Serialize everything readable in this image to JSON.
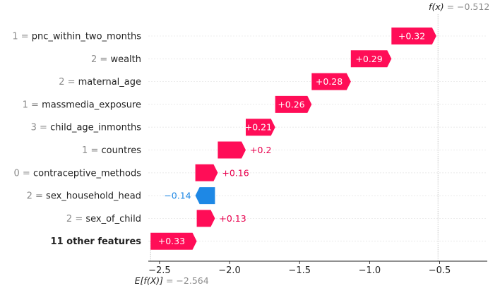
{
  "chart_data": {
    "type": "waterfall",
    "base_value": -2.564,
    "output_value": -0.512,
    "base_label": "E[f(X)] = −2.564",
    "output_label": "f(x) = −0.512",
    "xlim": [
      -2.58,
      -0.16
    ],
    "xticks": [
      -2.5,
      -2.0,
      -1.5,
      -1.0,
      -0.5
    ],
    "xtick_labels": [
      "−2.5",
      "−2.0",
      "−1.5",
      "−1.0",
      "−0.5"
    ],
    "features": [
      {
        "value": "1",
        "name": "pnc_within_two_months",
        "shap": 0.32,
        "label": "+0.32"
      },
      {
        "value": "2",
        "name": "wealth",
        "shap": 0.29,
        "label": "+0.29"
      },
      {
        "value": "2",
        "name": "maternal_age",
        "shap": 0.28,
        "label": "+0.28"
      },
      {
        "value": "1",
        "name": "massmedia_exposure",
        "shap": 0.26,
        "label": "+0.26"
      },
      {
        "value": "3",
        "name": "child_age_inmonths",
        "shap": 0.21,
        "label": "+0.21"
      },
      {
        "value": "1",
        "name": "countres",
        "shap": 0.2,
        "label": "+0.2"
      },
      {
        "value": "0",
        "name": "contraceptive_methods",
        "shap": 0.16,
        "label": "+0.16"
      },
      {
        "value": "2",
        "name": "sex_household_head",
        "shap": -0.14,
        "label": "−0.14"
      },
      {
        "value": "2",
        "name": "sex_of_child",
        "shap": 0.13,
        "label": "+0.13"
      },
      {
        "value": "",
        "name": "11 other features",
        "shap": 0.33,
        "label": "+0.33"
      }
    ],
    "colors": {
      "positive": "#ff0d57",
      "negative": "#1e88e5",
      "positive_text": "#e8004d",
      "negative_text": "#1e88e5"
    }
  }
}
